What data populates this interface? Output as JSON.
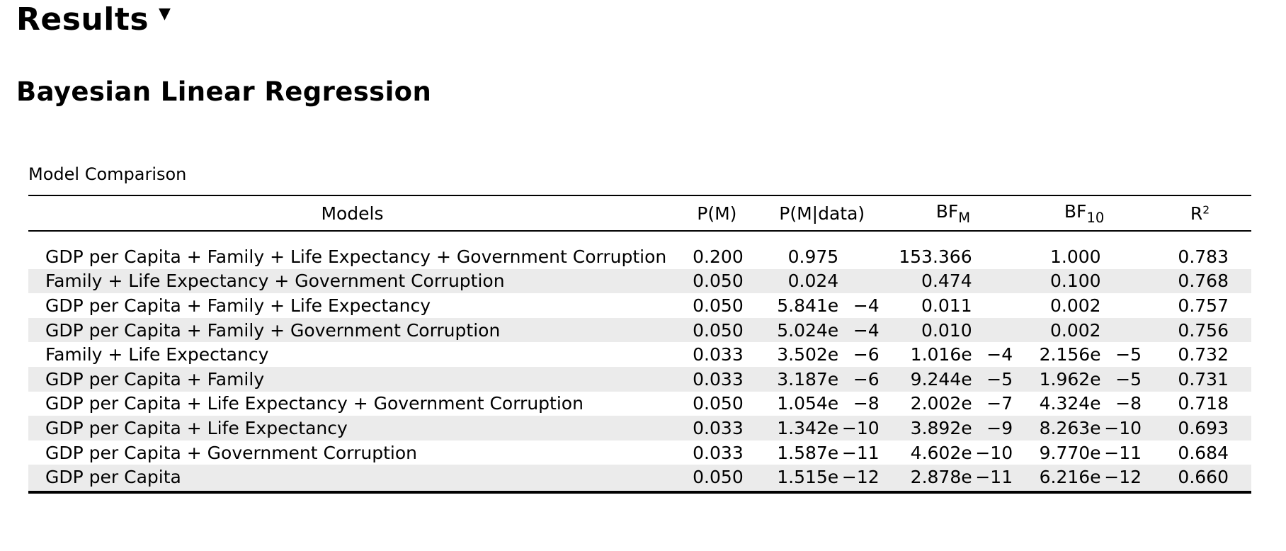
{
  "results": {
    "title": "Results",
    "toggle_glyph": "▼"
  },
  "analysis": {
    "title": "Bayesian Linear Regression"
  },
  "table": {
    "title": "Model Comparison",
    "headers": {
      "models": "Models",
      "pm": "P(M)",
      "pmdata": "P(M|data)",
      "bfm_base": "BF",
      "bfm_sub": "M",
      "bf10_base": "BF",
      "bf10_sub": "10",
      "r2_base": "R",
      "r2_sup": "2"
    },
    "rows": [
      {
        "model": "GDP per Capita + Family + Life Expectancy + Government Corruption",
        "pm": "0.200",
        "pmdata": "0.975",
        "pmdata_exp": "",
        "bfm": "153.366",
        "bfm_exp": "",
        "bf10": "1.000",
        "bf10_exp": "",
        "r2": "0.783"
      },
      {
        "model": "Family + Life Expectancy + Government Corruption",
        "pm": "0.050",
        "pmdata": "0.024",
        "pmdata_exp": "",
        "bfm": "0.474",
        "bfm_exp": "",
        "bf10": "0.100",
        "bf10_exp": "",
        "r2": "0.768"
      },
      {
        "model": "GDP per Capita + Family + Life Expectancy",
        "pm": "0.050",
        "pmdata": "5.841e",
        "pmdata_exp": "−4",
        "bfm": "0.011",
        "bfm_exp": "",
        "bf10": "0.002",
        "bf10_exp": "",
        "r2": "0.757"
      },
      {
        "model": "GDP per Capita + Family + Government Corruption",
        "pm": "0.050",
        "pmdata": "5.024e",
        "pmdata_exp": "−4",
        "bfm": "0.010",
        "bfm_exp": "",
        "bf10": "0.002",
        "bf10_exp": "",
        "r2": "0.756"
      },
      {
        "model": "Family + Life Expectancy",
        "pm": "0.033",
        "pmdata": "3.502e",
        "pmdata_exp": "−6",
        "bfm": "1.016e",
        "bfm_exp": "−4",
        "bf10": "2.156e",
        "bf10_exp": "−5",
        "r2": "0.732"
      },
      {
        "model": "GDP per Capita + Family",
        "pm": "0.033",
        "pmdata": "3.187e",
        "pmdata_exp": "−6",
        "bfm": "9.244e",
        "bfm_exp": "−5",
        "bf10": "1.962e",
        "bf10_exp": "−5",
        "r2": "0.731"
      },
      {
        "model": "GDP per Capita + Life Expectancy + Government Corruption",
        "pm": "0.050",
        "pmdata": "1.054e",
        "pmdata_exp": "−8",
        "bfm": "2.002e",
        "bfm_exp": "−7",
        "bf10": "4.324e",
        "bf10_exp": "−8",
        "r2": "0.718"
      },
      {
        "model": "GDP per Capita + Life Expectancy",
        "pm": "0.033",
        "pmdata": "1.342e",
        "pmdata_exp": "−10",
        "bfm": "3.892e",
        "bfm_exp": "−9",
        "bf10": "8.263e",
        "bf10_exp": "−10",
        "r2": "0.693"
      },
      {
        "model": "GDP per Capita + Government Corruption",
        "pm": "0.033",
        "pmdata": "1.587e",
        "pmdata_exp": "−11",
        "bfm": "4.602e",
        "bfm_exp": "−10",
        "bf10": "9.770e",
        "bf10_exp": "−11",
        "r2": "0.684"
      },
      {
        "model": "GDP per Capita",
        "pm": "0.050",
        "pmdata": "1.515e",
        "pmdata_exp": "−12",
        "bfm": "2.878e",
        "bfm_exp": "−11",
        "bf10": "6.216e",
        "bf10_exp": "−12",
        "r2": "0.660"
      }
    ]
  }
}
